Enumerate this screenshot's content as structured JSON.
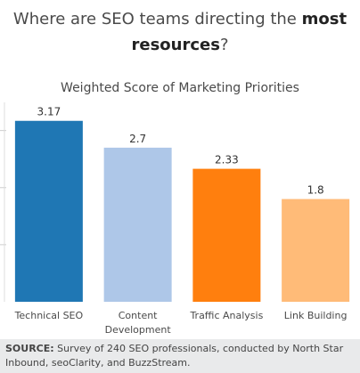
{
  "header": {
    "title_part1": "Where are SEO teams directing the ",
    "title_bold1": "most",
    "title_bold2": "resources",
    "title_end": "?"
  },
  "chart_data": {
    "type": "bar",
    "title": "Weighted Score of Marketing Priorities",
    "categories": [
      "Technical SEO",
      "Content Development",
      "Traffic Analysis",
      "Link Building"
    ],
    "category_lines": [
      [
        "Technical SEO"
      ],
      [
        "Content",
        "Development"
      ],
      [
        "Traffic Analysis"
      ],
      [
        "Link Building"
      ]
    ],
    "values": [
      3.17,
      2.7,
      2.33,
      1.8
    ],
    "value_labels": [
      "3.17",
      "2.7",
      "2.33",
      "1.8"
    ],
    "colors": [
      "#1f77b4",
      "#aec7e8",
      "#ff7f0e",
      "#ffbb78"
    ],
    "ylim": [
      0,
      3.4
    ],
    "xlabel": "",
    "ylabel": "",
    "legend": "none"
  },
  "footer": {
    "source_label": "SOURCE:",
    "source_text": "Survey of 240 SEO professionals, conducted by North Star Inbound, seoClarity, and BuzzStream."
  }
}
